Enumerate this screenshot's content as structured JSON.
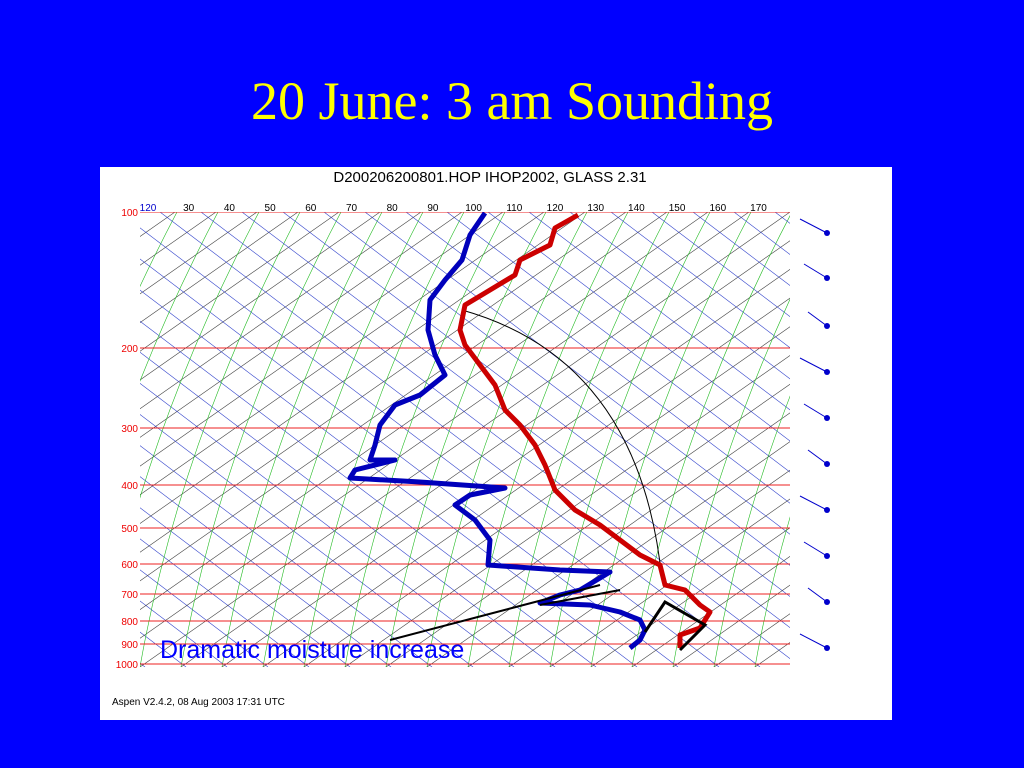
{
  "header": {
    "title": "20 June: 3 am Sounding"
  },
  "diagram": {
    "caption": "D200206200801.HOP IHOP2002, GLASS 2.31",
    "pressure_labels": [
      "100",
      "200",
      "300",
      "400",
      "500",
      "600",
      "700",
      "800",
      "900",
      "1000"
    ],
    "temperature_labels": [
      "120",
      "30",
      "40",
      "50",
      "60",
      "70",
      "80",
      "90",
      "100",
      "110",
      "120",
      "130",
      "140",
      "150",
      "160",
      "170"
    ],
    "footer": "Aspen V2.4.2, 08 Aug 2003  17:31 UTC"
  },
  "annotation": "Dramatic moisture increase"
}
